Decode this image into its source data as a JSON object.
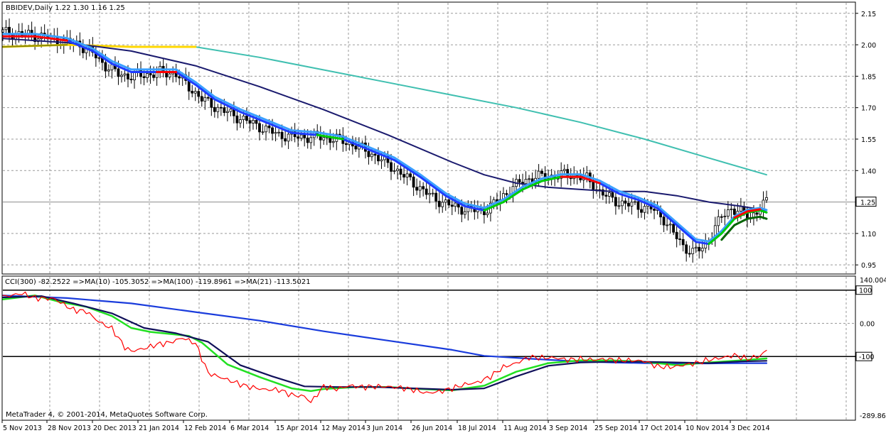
{
  "window": {
    "title": "BBIDEV,Daily  1.22 1.30 1.16 1.25",
    "copyright": "MetaTrader 4, © 2001-2014, MetaQuotes Software Corp."
  },
  "colors": {
    "background": "#ffffff",
    "bull_candle": "#000000",
    "bear_candle": "#000000",
    "ma_fast_blue": "#1e3cff",
    "ma_fast_light": "#3aa0ff",
    "ma_red_segments": "#ff0000",
    "ma_green_segments": "#00d000",
    "ma_dark_green": "#006400",
    "ma_yellow_segments": "#ffd700",
    "ma_slow_navy": "#1a1a6e",
    "ma_long_teal": "#3fbfb0",
    "cci": "#ff0000",
    "cci_ma10": "#22e022",
    "cci_ma100": "#1a3cdc",
    "cci_ma21": "#10105a"
  },
  "chart_data": [
    {
      "type": "candlestick",
      "symbol": "BBIDEV",
      "timeframe": "Daily",
      "ohlc_last": {
        "open": 1.22,
        "high": 1.3,
        "low": 1.16,
        "close": 1.25
      },
      "current_price_label": "1.25",
      "y_ticks": [
        "2.15",
        "2.00",
        "1.85",
        "1.70",
        "1.55",
        "1.40",
        "1.25",
        "1.10",
        "0.95"
      ],
      "ylim": [
        0.91,
        2.2
      ],
      "x_labels": [
        "5 Nov 2013",
        "28 Nov 2013",
        "20 Dec 2013",
        "21 Jan 2014",
        "12 Feb 2014",
        "6 Mar 2014",
        "15 Apr 2014",
        "12 May 2014",
        "3 Jun 2014",
        "26 Jun 2014",
        "18 Jul 2014",
        "11 Aug 2014",
        "3 Sep 2014",
        "25 Sep 2014",
        "17 Oct 2014",
        "10 Nov 2014",
        "3 Dec 2014"
      ],
      "price_path": [
        [
          0,
          2.06
        ],
        [
          6,
          2.05
        ],
        [
          12,
          2.04
        ],
        [
          18,
          2.02
        ],
        [
          24,
          2.0
        ],
        [
          28,
          1.96
        ],
        [
          32,
          1.9
        ],
        [
          36,
          1.86
        ],
        [
          40,
          1.85
        ],
        [
          46,
          1.86
        ],
        [
          50,
          1.87
        ],
        [
          54,
          1.86
        ],
        [
          58,
          1.8
        ],
        [
          62,
          1.74
        ],
        [
          68,
          1.69
        ],
        [
          74,
          1.65
        ],
        [
          80,
          1.61
        ],
        [
          86,
          1.57
        ],
        [
          92,
          1.56
        ],
        [
          98,
          1.56
        ],
        [
          104,
          1.55
        ],
        [
          110,
          1.52
        ],
        [
          116,
          1.47
        ],
        [
          122,
          1.41
        ],
        [
          128,
          1.34
        ],
        [
          134,
          1.27
        ],
        [
          140,
          1.23
        ],
        [
          146,
          1.21
        ],
        [
          150,
          1.21
        ],
        [
          154,
          1.25
        ],
        [
          158,
          1.31
        ],
        [
          162,
          1.35
        ],
        [
          166,
          1.37
        ],
        [
          170,
          1.37
        ],
        [
          174,
          1.38
        ],
        [
          178,
          1.38
        ],
        [
          182,
          1.36
        ],
        [
          186,
          1.3
        ],
        [
          190,
          1.26
        ],
        [
          194,
          1.24
        ],
        [
          198,
          1.23
        ],
        [
          202,
          1.22
        ],
        [
          206,
          1.17
        ],
        [
          209,
          1.1
        ],
        [
          212,
          1.04
        ],
        [
          215,
          1.01
        ],
        [
          218,
          1.03
        ],
        [
          221,
          1.1
        ],
        [
          224,
          1.18
        ],
        [
          227,
          1.22
        ],
        [
          230,
          1.2
        ],
        [
          233,
          1.18
        ],
        [
          236,
          1.22
        ],
        [
          238,
          1.25
        ]
      ],
      "ma_fast_path": [
        [
          0,
          2.04
        ],
        [
          10,
          2.04
        ],
        [
          20,
          2.02
        ],
        [
          28,
          1.97
        ],
        [
          34,
          1.91
        ],
        [
          40,
          1.87
        ],
        [
          48,
          1.87
        ],
        [
          54,
          1.87
        ],
        [
          60,
          1.81
        ],
        [
          66,
          1.74
        ],
        [
          74,
          1.68
        ],
        [
          82,
          1.63
        ],
        [
          90,
          1.58
        ],
        [
          98,
          1.57
        ],
        [
          106,
          1.55
        ],
        [
          114,
          1.5
        ],
        [
          122,
          1.45
        ],
        [
          130,
          1.37
        ],
        [
          138,
          1.28
        ],
        [
          144,
          1.23
        ],
        [
          150,
          1.21
        ],
        [
          156,
          1.25
        ],
        [
          162,
          1.31
        ],
        [
          168,
          1.35
        ],
        [
          174,
          1.37
        ],
        [
          180,
          1.37
        ],
        [
          186,
          1.34
        ],
        [
          192,
          1.29
        ],
        [
          198,
          1.26
        ],
        [
          204,
          1.22
        ],
        [
          210,
          1.14
        ],
        [
          216,
          1.06
        ],
        [
          220,
          1.05
        ],
        [
          224,
          1.1
        ],
        [
          228,
          1.17
        ],
        [
          232,
          1.2
        ],
        [
          236,
          1.21
        ],
        [
          238,
          1.2
        ]
      ],
      "ma_slow_path": [
        [
          0,
          2.03
        ],
        [
          20,
          2.01
        ],
        [
          40,
          1.97
        ],
        [
          60,
          1.9
        ],
        [
          80,
          1.8
        ],
        [
          100,
          1.69
        ],
        [
          120,
          1.57
        ],
        [
          140,
          1.44
        ],
        [
          150,
          1.38
        ],
        [
          160,
          1.34
        ],
        [
          170,
          1.32
        ],
        [
          180,
          1.31
        ],
        [
          190,
          1.3
        ],
        [
          200,
          1.3
        ],
        [
          210,
          1.28
        ],
        [
          220,
          1.25
        ],
        [
          230,
          1.23
        ],
        [
          238,
          1.21
        ]
      ],
      "ma_long_path": [
        [
          0,
          1.99
        ],
        [
          20,
          2.0
        ],
        [
          40,
          1.99
        ],
        [
          60,
          1.99
        ],
        [
          80,
          1.94
        ],
        [
          100,
          1.88
        ],
        [
          120,
          1.82
        ],
        [
          140,
          1.76
        ],
        [
          160,
          1.7
        ],
        [
          180,
          1.63
        ],
        [
          200,
          1.55
        ],
        [
          220,
          1.46
        ],
        [
          238,
          1.38
        ]
      ]
    },
    {
      "type": "line",
      "indicator_label": "CCI(300) -82.2522  =>MA(10) -105.3052  =>MA(100) -119.8961  =>MA(21) -113.5021",
      "y_ticks": [
        "140.0049",
        "100",
        "0.00",
        "-100",
        "-289.861"
      ],
      "ylim": [
        -289.861,
        140.0049
      ],
      "levels": [
        100,
        -100
      ],
      "series": [
        {
          "name": "CCI(300)",
          "points": [
            [
              0,
              80
            ],
            [
              6,
              90
            ],
            [
              10,
              76
            ],
            [
              16,
              74
            ],
            [
              22,
              40
            ],
            [
              26,
              36
            ],
            [
              30,
              4
            ],
            [
              34,
              -16
            ],
            [
              38,
              -72
            ],
            [
              40,
              -84
            ],
            [
              44,
              -76
            ],
            [
              48,
              -64
            ],
            [
              52,
              -58
            ],
            [
              56,
              -44
            ],
            [
              60,
              -60
            ],
            [
              64,
              -150
            ],
            [
              70,
              -170
            ],
            [
              76,
              -190
            ],
            [
              82,
              -200
            ],
            [
              86,
              -200
            ],
            [
              90,
              -216
            ],
            [
              94,
              -220
            ],
            [
              96,
              -238
            ],
            [
              100,
              -190
            ],
            [
              104,
              -198
            ],
            [
              108,
              -188
            ],
            [
              112,
              -192
            ],
            [
              118,
              -190
            ],
            [
              124,
              -194
            ],
            [
              128,
              -200
            ],
            [
              132,
              -210
            ],
            [
              136,
              -206
            ],
            [
              140,
              -196
            ],
            [
              144,
              -184
            ],
            [
              148,
              -178
            ],
            [
              152,
              -160
            ],
            [
              156,
              -132
            ],
            [
              160,
              -120
            ],
            [
              164,
              -102
            ],
            [
              168,
              -104
            ],
            [
              172,
              -104
            ],
            [
              176,
              -110
            ],
            [
              180,
              -108
            ],
            [
              184,
              -110
            ],
            [
              188,
              -108
            ],
            [
              192,
              -112
            ],
            [
              196,
              -112
            ],
            [
              200,
              -114
            ],
            [
              204,
              -130
            ],
            [
              208,
              -132
            ],
            [
              212,
              -126
            ],
            [
              216,
              -120
            ],
            [
              220,
              -110
            ],
            [
              224,
              -104
            ],
            [
              228,
              -96
            ],
            [
              232,
              -108
            ],
            [
              236,
              -98
            ],
            [
              238,
              -82
            ]
          ]
        },
        {
          "name": "MA(10)",
          "points": [
            [
              0,
              72
            ],
            [
              10,
              84
            ],
            [
              18,
              64
            ],
            [
              26,
              50
            ],
            [
              34,
              22
            ],
            [
              40,
              -14
            ],
            [
              46,
              -26
            ],
            [
              52,
              -32
            ],
            [
              58,
              -38
            ],
            [
              62,
              -58
            ],
            [
              70,
              -124
            ],
            [
              80,
              -162
            ],
            [
              90,
              -196
            ],
            [
              96,
              -204
            ],
            [
              100,
              -198
            ],
            [
              110,
              -192
            ],
            [
              120,
              -192
            ],
            [
              130,
              -198
            ],
            [
              140,
              -202
            ],
            [
              150,
              -188
            ],
            [
              160,
              -146
            ],
            [
              170,
              -120
            ],
            [
              180,
              -112
            ],
            [
              190,
              -112
            ],
            [
              200,
              -116
            ],
            [
              210,
              -126
            ],
            [
              220,
              -118
            ],
            [
              230,
              -112
            ],
            [
              238,
              -106
            ]
          ]
        },
        {
          "name": "MA(100)",
          "points": [
            [
              0,
              84
            ],
            [
              20,
              76
            ],
            [
              40,
              60
            ],
            [
              60,
              34
            ],
            [
              80,
              8
            ],
            [
              100,
              -24
            ],
            [
              120,
              -52
            ],
            [
              140,
              -80
            ],
            [
              150,
              -98
            ],
            [
              160,
              -104
            ],
            [
              170,
              -110
            ],
            [
              180,
              -115
            ],
            [
              190,
              -118
            ],
            [
              200,
              -120
            ],
            [
              210,
              -121
            ],
            [
              220,
              -121
            ],
            [
              230,
              -120
            ],
            [
              238,
              -120
            ]
          ]
        },
        {
          "name": "MA(21)",
          "points": [
            [
              0,
              78
            ],
            [
              12,
              82
            ],
            [
              22,
              60
            ],
            [
              34,
              30
            ],
            [
              44,
              -14
            ],
            [
              54,
              -30
            ],
            [
              64,
              -56
            ],
            [
              74,
              -126
            ],
            [
              84,
              -160
            ],
            [
              94,
              -190
            ],
            [
              104,
              -192
            ],
            [
              116,
              -192
            ],
            [
              128,
              -196
            ],
            [
              140,
              -200
            ],
            [
              150,
              -196
            ],
            [
              160,
              -160
            ],
            [
              170,
              -128
            ],
            [
              180,
              -118
            ],
            [
              190,
              -116
            ],
            [
              200,
              -116
            ],
            [
              210,
              -118
            ],
            [
              220,
              -120
            ],
            [
              230,
              -115
            ],
            [
              238,
              -113
            ]
          ]
        }
      ]
    }
  ]
}
